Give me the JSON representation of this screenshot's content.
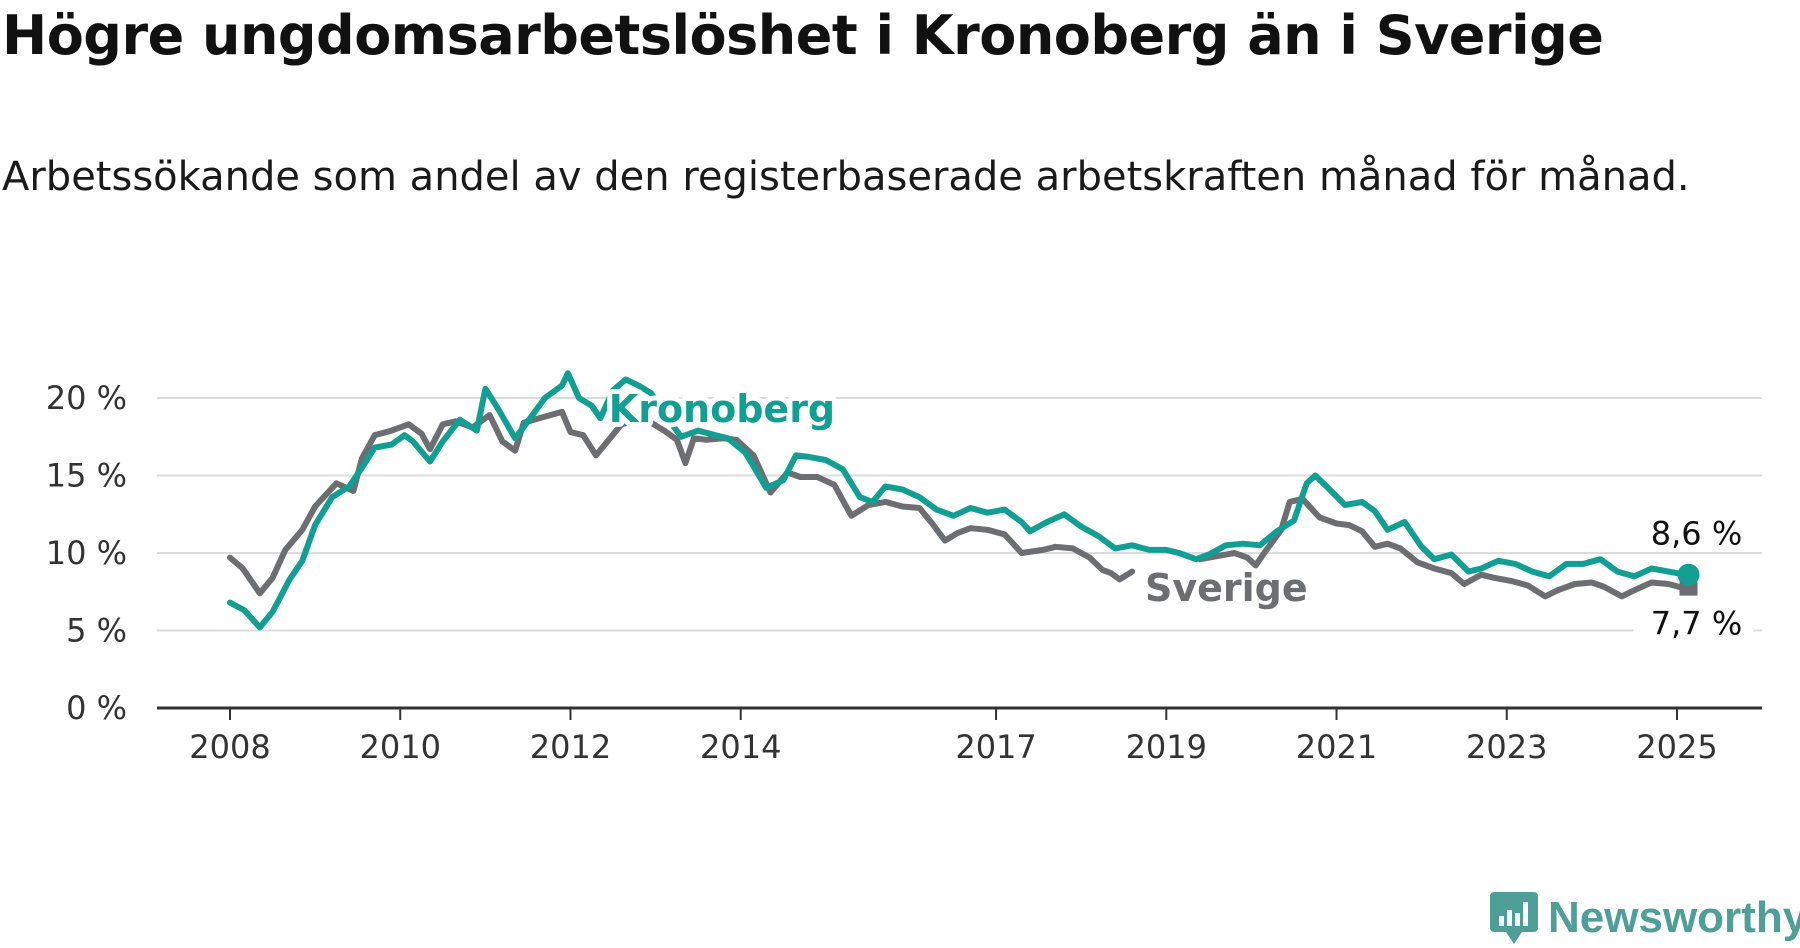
{
  "title": "Högre ungdomsarbetslöshet i Kronoberg än i Sverige",
  "subtitle": "Arbetssökande som andel av den registerbaserade arbetskraften månad för månad.",
  "colors": {
    "kronoberg": "#139e93",
    "sverige": "#6d6e71",
    "grid": "#dcdcdc",
    "axis": "#333333",
    "logo": "#4f9e97"
  },
  "logo": {
    "text": "Newsworthy",
    "icon": "chart-bubble-icon"
  },
  "chart_data": {
    "type": "line",
    "title": "Högre ungdomsarbetslöshet i Kronoberg än i Sverige",
    "xlabel": "",
    "ylabel": "",
    "ylim": [
      0,
      20
    ],
    "xlim": [
      2008,
      2025.15
    ],
    "grid": true,
    "y_ticks": [
      0,
      5,
      10,
      15,
      20
    ],
    "y_tick_labels": [
      "0 %",
      "5 %",
      "10 %",
      "15 %",
      "20 %"
    ],
    "x_ticks": [
      2008,
      2010,
      2012,
      2014,
      2017,
      2019,
      2021,
      2023,
      2025
    ],
    "x_tick_labels": [
      "2008",
      "2010",
      "2012",
      "2014",
      "2017",
      "2019",
      "2021",
      "2023",
      "2025"
    ],
    "series": [
      {
        "name": "Kronoberg",
        "end_label": "8,6 %",
        "points": [
          [
            2008.0,
            6.8
          ],
          [
            2008.17,
            6.3
          ],
          [
            2008.35,
            5.2
          ],
          [
            2008.5,
            6.2
          ],
          [
            2008.7,
            8.3
          ],
          [
            2008.85,
            9.5
          ],
          [
            2009.0,
            11.8
          ],
          [
            2009.2,
            13.6
          ],
          [
            2009.4,
            14.3
          ],
          [
            2009.55,
            15.5
          ],
          [
            2009.7,
            16.8
          ],
          [
            2009.9,
            17.0
          ],
          [
            2010.05,
            17.6
          ],
          [
            2010.15,
            17.2
          ],
          [
            2010.35,
            15.9
          ],
          [
            2010.5,
            17.2
          ],
          [
            2010.7,
            18.6
          ],
          [
            2010.9,
            17.9
          ],
          [
            2011.0,
            20.6
          ],
          [
            2011.15,
            19.3
          ],
          [
            2011.35,
            17.4
          ],
          [
            2011.5,
            18.5
          ],
          [
            2011.7,
            20.0
          ],
          [
            2011.9,
            20.8
          ],
          [
            2011.97,
            21.6
          ],
          [
            2012.1,
            20.0
          ],
          [
            2012.25,
            19.5
          ],
          [
            2012.35,
            18.7
          ],
          [
            2012.5,
            20.5
          ],
          [
            2012.65,
            21.2
          ],
          [
            2012.8,
            20.8
          ],
          [
            2012.95,
            20.3
          ],
          [
            2013.1,
            19.0
          ],
          [
            2013.3,
            17.5
          ],
          [
            2013.5,
            17.9
          ],
          [
            2013.7,
            17.6
          ],
          [
            2013.85,
            17.4
          ],
          [
            2014.05,
            16.5
          ],
          [
            2014.15,
            15.6
          ],
          [
            2014.3,
            14.2
          ],
          [
            2014.5,
            14.7
          ],
          [
            2014.65,
            16.3
          ],
          [
            2014.8,
            16.2
          ],
          [
            2015.0,
            16.0
          ],
          [
            2015.2,
            15.4
          ],
          [
            2015.4,
            13.6
          ],
          [
            2015.55,
            13.3
          ],
          [
            2015.7,
            14.3
          ],
          [
            2015.9,
            14.1
          ],
          [
            2016.1,
            13.6
          ],
          [
            2016.3,
            12.8
          ],
          [
            2016.5,
            12.4
          ],
          [
            2016.7,
            12.9
          ],
          [
            2016.9,
            12.6
          ],
          [
            2017.1,
            12.8
          ],
          [
            2017.3,
            12.0
          ],
          [
            2017.4,
            11.4
          ],
          [
            2017.6,
            12.0
          ],
          [
            2017.8,
            12.5
          ],
          [
            2018.0,
            11.7
          ],
          [
            2018.2,
            11.1
          ],
          [
            2018.4,
            10.3
          ],
          [
            2018.6,
            10.5
          ],
          [
            2018.8,
            10.2
          ],
          [
            2019.0,
            10.2
          ],
          [
            2019.15,
            10.0
          ],
          [
            2019.35,
            9.6
          ],
          [
            2019.5,
            9.9
          ],
          [
            2019.7,
            10.5
          ],
          [
            2019.9,
            10.6
          ],
          [
            2020.1,
            10.5
          ],
          [
            2020.3,
            11.4
          ],
          [
            2020.5,
            12.1
          ],
          [
            2020.65,
            14.5
          ],
          [
            2020.75,
            15.0
          ],
          [
            2020.9,
            14.2
          ],
          [
            2021.1,
            13.1
          ],
          [
            2021.3,
            13.3
          ],
          [
            2021.45,
            12.7
          ],
          [
            2021.6,
            11.5
          ],
          [
            2021.8,
            12.0
          ],
          [
            2022.0,
            10.4
          ],
          [
            2022.15,
            9.6
          ],
          [
            2022.35,
            9.9
          ],
          [
            2022.55,
            8.8
          ],
          [
            2022.7,
            9.0
          ],
          [
            2022.9,
            9.5
          ],
          [
            2023.1,
            9.3
          ],
          [
            2023.3,
            8.8
          ],
          [
            2023.5,
            8.5
          ],
          [
            2023.7,
            9.3
          ],
          [
            2023.9,
            9.3
          ],
          [
            2024.1,
            9.6
          ],
          [
            2024.3,
            8.8
          ],
          [
            2024.5,
            8.5
          ],
          [
            2024.7,
            9.0
          ],
          [
            2024.9,
            8.8
          ],
          [
            2025.1,
            8.6
          ]
        ]
      },
      {
        "name": "Sverige",
        "end_label": "7,7 %",
        "points": [
          [
            2008.0,
            9.7
          ],
          [
            2008.15,
            9.0
          ],
          [
            2008.35,
            7.4
          ],
          [
            2008.5,
            8.4
          ],
          [
            2008.65,
            10.2
          ],
          [
            2008.85,
            11.5
          ],
          [
            2009.0,
            13.0
          ],
          [
            2009.25,
            14.5
          ],
          [
            2009.45,
            14.0
          ],
          [
            2009.55,
            16.1
          ],
          [
            2009.7,
            17.6
          ],
          [
            2009.9,
            17.9
          ],
          [
            2010.1,
            18.3
          ],
          [
            2010.25,
            17.7
          ],
          [
            2010.35,
            16.7
          ],
          [
            2010.5,
            18.3
          ],
          [
            2010.65,
            18.5
          ],
          [
            2010.85,
            18.1
          ],
          [
            2011.05,
            18.9
          ],
          [
            2011.2,
            17.2
          ],
          [
            2011.35,
            16.6
          ],
          [
            2011.45,
            18.4
          ],
          [
            2011.7,
            18.8
          ],
          [
            2011.9,
            19.1
          ],
          [
            2012.0,
            17.8
          ],
          [
            2012.15,
            17.6
          ],
          [
            2012.3,
            16.3
          ],
          [
            2012.45,
            17.3
          ],
          [
            2012.6,
            18.3
          ],
          [
            2012.8,
            18.6
          ],
          [
            2012.95,
            18.4
          ],
          [
            2013.1,
            17.9
          ],
          [
            2013.25,
            17.3
          ],
          [
            2013.35,
            15.8
          ],
          [
            2013.45,
            17.4
          ],
          [
            2013.6,
            17.3
          ],
          [
            2013.8,
            17.4
          ],
          [
            2013.95,
            17.3
          ],
          [
            2014.15,
            16.3
          ],
          [
            2014.35,
            13.9
          ],
          [
            2014.55,
            15.2
          ],
          [
            2014.7,
            14.9
          ],
          [
            2014.9,
            14.9
          ],
          [
            2015.1,
            14.4
          ],
          [
            2015.3,
            12.4
          ],
          [
            2015.5,
            13.1
          ],
          [
            2015.7,
            13.3
          ],
          [
            2015.9,
            13.0
          ],
          [
            2016.1,
            12.9
          ],
          [
            2016.25,
            11.9
          ],
          [
            2016.4,
            10.8
          ],
          [
            2016.55,
            11.3
          ],
          [
            2016.7,
            11.6
          ],
          [
            2016.9,
            11.5
          ],
          [
            2017.1,
            11.2
          ],
          [
            2017.3,
            10.0
          ],
          [
            2017.55,
            10.2
          ],
          [
            2017.7,
            10.4
          ],
          [
            2017.9,
            10.3
          ],
          [
            2018.1,
            9.7
          ],
          [
            2018.25,
            8.9
          ],
          [
            2018.35,
            8.7
          ],
          [
            2018.45,
            8.3
          ],
          [
            2018.6,
            8.8
          ],
          [
            2019.4,
            9.6
          ],
          [
            2019.6,
            9.8
          ],
          [
            2019.8,
            10.0
          ],
          [
            2019.95,
            9.7
          ],
          [
            2020.05,
            9.2
          ],
          [
            2020.15,
            10.0
          ],
          [
            2020.35,
            11.5
          ],
          [
            2020.45,
            13.3
          ],
          [
            2020.6,
            13.5
          ],
          [
            2020.8,
            12.3
          ],
          [
            2021.0,
            11.9
          ],
          [
            2021.15,
            11.8
          ],
          [
            2021.3,
            11.4
          ],
          [
            2021.45,
            10.4
          ],
          [
            2021.6,
            10.6
          ],
          [
            2021.75,
            10.3
          ],
          [
            2021.95,
            9.4
          ],
          [
            2022.15,
            9.0
          ],
          [
            2022.35,
            8.7
          ],
          [
            2022.5,
            8.0
          ],
          [
            2022.7,
            8.6
          ],
          [
            2022.85,
            8.4
          ],
          [
            2023.05,
            8.2
          ],
          [
            2023.25,
            7.9
          ],
          [
            2023.45,
            7.2
          ],
          [
            2023.6,
            7.6
          ],
          [
            2023.8,
            8.0
          ],
          [
            2024.0,
            8.1
          ],
          [
            2024.15,
            7.8
          ],
          [
            2024.35,
            7.2
          ],
          [
            2024.5,
            7.6
          ],
          [
            2024.7,
            8.1
          ],
          [
            2024.9,
            8.0
          ],
          [
            2025.1,
            7.7
          ]
        ]
      }
    ]
  }
}
